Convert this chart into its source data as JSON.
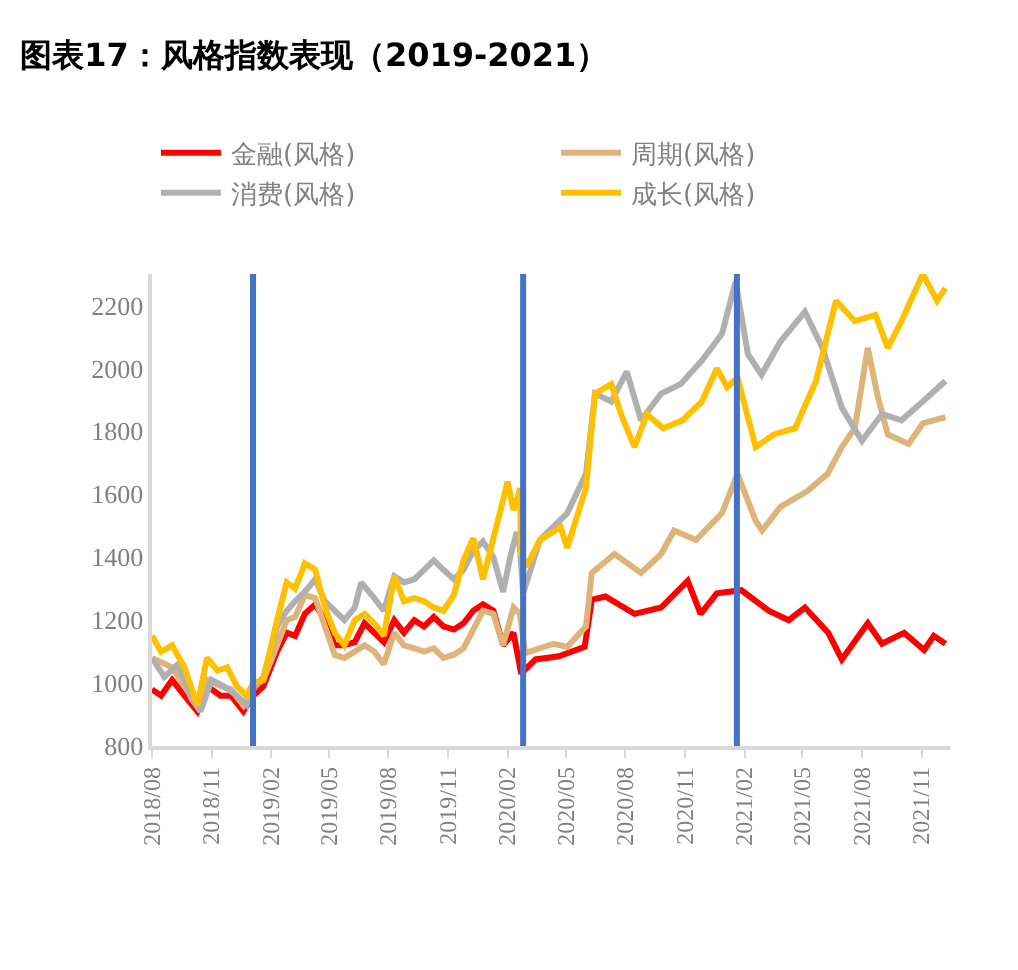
{
  "chart_data": {
    "type": "line",
    "title": "图表17：风格指数表现（2019-2021）",
    "xlim": [
      "2018-08-01",
      "2021-12-15"
    ],
    "xticks": [
      {
        "value": "2018-08-01",
        "label": "2018/08"
      },
      {
        "value": "2018-11-01",
        "label": "2018/11"
      },
      {
        "value": "2019-02-01",
        "label": "2019/02"
      },
      {
        "value": "2019-05-01",
        "label": "2019/05"
      },
      {
        "value": "2019-08-01",
        "label": "2019/08"
      },
      {
        "value": "2019-11-01",
        "label": "2019/11"
      },
      {
        "value": "2020-02-01",
        "label": "2020/02"
      },
      {
        "value": "2020-05-01",
        "label": "2020/05"
      },
      {
        "value": "2020-08-01",
        "label": "2020/08"
      },
      {
        "value": "2020-11-01",
        "label": "2020/11"
      },
      {
        "value": "2021-02-01",
        "label": "2021/02"
      },
      {
        "value": "2021-05-01",
        "label": "2021/05"
      },
      {
        "value": "2021-08-01",
        "label": "2021/08"
      },
      {
        "value": "2021-11-01",
        "label": "2021/11"
      }
    ],
    "ylim": [
      800,
      2300
    ],
    "yticks": [
      800,
      1000,
      1200,
      1400,
      1600,
      1800,
      2000,
      2200
    ],
    "legend": "top",
    "marker": "none",
    "line_style": "solid",
    "ref_lines": [
      {
        "axis": "x",
        "value": "2019-01-04",
        "color": "#4472c4"
      },
      {
        "axis": "x",
        "value": "2020-02-25",
        "color": "#4472c4"
      },
      {
        "axis": "x",
        "value": "2021-01-20",
        "color": "#4472c4"
      }
    ],
    "series": [
      {
        "name": "金融(风格)",
        "color": "#ff0000",
        "x": [
          "2018-08-01",
          "2018-08-15",
          "2018-09-01",
          "2018-09-20",
          "2018-10-10",
          "2018-10-25",
          "2018-11-15",
          "2018-12-01",
          "2018-12-20",
          "2019-01-04",
          "2019-01-20",
          "2019-02-10",
          "2019-02-25",
          "2019-03-10",
          "2019-03-25",
          "2019-04-10",
          "2019-04-25",
          "2019-05-10",
          "2019-05-25",
          "2019-06-10",
          "2019-06-25",
          "2019-07-10",
          "2019-07-25",
          "2019-08-10",
          "2019-08-25",
          "2019-09-10",
          "2019-09-25",
          "2019-10-10",
          "2019-10-25",
          "2019-11-10",
          "2019-11-25",
          "2019-12-10",
          "2019-12-25",
          "2020-01-10",
          "2020-01-25",
          "2020-02-10",
          "2020-02-22",
          "2020-03-15",
          "2020-04-20",
          "2020-05-30",
          "2020-06-10",
          "2020-07-01",
          "2020-08-15",
          "2020-09-25",
          "2020-11-05",
          "2020-11-25",
          "2020-12-20",
          "2021-01-27",
          "2021-03-10",
          "2021-04-10",
          "2021-05-05",
          "2021-06-10",
          "2021-07-01",
          "2021-08-10",
          "2021-09-01",
          "2021-10-05",
          "2021-11-05",
          "2021-11-20",
          "2021-12-08"
        ],
        "values": [
          980,
          960,
          1010,
          960,
          910,
          990,
          960,
          960,
          910,
          960,
          990,
          1100,
          1160,
          1150,
          1220,
          1250,
          1200,
          1120,
          1120,
          1130,
          1190,
          1160,
          1130,
          1200,
          1160,
          1200,
          1180,
          1210,
          1180,
          1170,
          1190,
          1230,
          1250,
          1230,
          1120,
          1160,
          1030,
          1075,
          1085,
          1115,
          1265,
          1275,
          1220,
          1240,
          1325,
          1220,
          1285,
          1295,
          1230,
          1200,
          1240,
          1160,
          1075,
          1190,
          1125,
          1160,
          1105,
          1150,
          1125
        ]
      },
      {
        "name": "周期(风格)",
        "color": "#dfb47a",
        "x": [
          "2018-08-01",
          "2018-09-01",
          "2018-09-20",
          "2018-10-10",
          "2018-10-25",
          "2018-11-15",
          "2018-12-01",
          "2018-12-20",
          "2019-01-04",
          "2019-01-20",
          "2019-02-10",
          "2019-02-25",
          "2019-03-10",
          "2019-03-25",
          "2019-04-10",
          "2019-04-25",
          "2019-05-10",
          "2019-05-25",
          "2019-06-10",
          "2019-06-25",
          "2019-07-10",
          "2019-07-25",
          "2019-08-10",
          "2019-08-25",
          "2019-09-10",
          "2019-09-25",
          "2019-10-10",
          "2019-10-25",
          "2019-11-10",
          "2019-11-25",
          "2019-12-10",
          "2019-12-25",
          "2020-01-10",
          "2020-01-25",
          "2020-02-10",
          "2020-02-20",
          "2020-02-28",
          "2020-04-12",
          "2020-05-03",
          "2020-06-01",
          "2020-06-10",
          "2020-07-15",
          "2020-08-25",
          "2020-09-25",
          "2020-10-15",
          "2020-11-18",
          "2020-12-28",
          "2021-01-21",
          "2021-02-18",
          "2021-02-28",
          "2021-03-28",
          "2021-05-09",
          "2021-06-09",
          "2021-07-01",
          "2021-07-21",
          "2021-08-10",
          "2021-08-25",
          "2021-09-10",
          "2021-10-12",
          "2021-11-03",
          "2021-12-08"
        ],
        "values": [
          1080,
          1050,
          990,
          930,
          1010,
          990,
          980,
          930,
          990,
          1010,
          1120,
          1200,
          1210,
          1280,
          1270,
          1180,
          1090,
          1080,
          1100,
          1120,
          1100,
          1060,
          1160,
          1120,
          1110,
          1100,
          1110,
          1080,
          1090,
          1110,
          1170,
          1230,
          1220,
          1120,
          1240,
          1220,
          1095,
          1125,
          1115,
          1180,
          1350,
          1410,
          1350,
          1410,
          1485,
          1455,
          1540,
          1665,
          1515,
          1485,
          1560,
          1610,
          1665,
          1750,
          1810,
          2065,
          1915,
          1790,
          1760,
          1825,
          1845
        ]
      },
      {
        "name": "消费(风格)",
        "color": "#b0b0b0",
        "x": [
          "2018-08-01",
          "2018-08-20",
          "2018-09-10",
          "2018-10-01",
          "2018-10-15",
          "2018-11-01",
          "2018-11-20",
          "2018-12-10",
          "2018-12-25",
          "2019-01-04",
          "2019-01-20",
          "2019-02-10",
          "2019-02-25",
          "2019-03-10",
          "2019-03-25",
          "2019-04-10",
          "2019-04-25",
          "2019-05-10",
          "2019-05-25",
          "2019-06-10",
          "2019-06-20",
          "2019-07-10",
          "2019-07-25",
          "2019-08-10",
          "2019-08-25",
          "2019-09-10",
          "2019-09-25",
          "2019-10-10",
          "2019-10-25",
          "2019-11-10",
          "2019-11-25",
          "2019-12-10",
          "2019-12-25",
          "2020-01-10",
          "2020-01-25",
          "2020-02-05",
          "2020-02-15",
          "2020-02-20",
          "2020-02-25",
          "2020-03-22",
          "2020-05-03",
          "2020-06-01",
          "2020-06-15",
          "2020-07-10",
          "2020-08-03",
          "2020-08-25",
          "2020-09-25",
          "2020-10-25",
          "2020-11-27",
          "2020-12-28",
          "2021-01-18",
          "2021-02-06",
          "2021-02-27",
          "2021-03-28",
          "2021-05-05",
          "2021-06-01",
          "2021-07-01",
          "2021-08-01",
          "2021-09-01",
          "2021-10-01",
          "2021-11-03",
          "2021-12-08"
        ],
        "values": [
          1080,
          1020,
          1060,
          950,
          910,
          1010,
          990,
          960,
          930,
          980,
          1020,
          1180,
          1230,
          1260,
          1290,
          1330,
          1260,
          1230,
          1200,
          1240,
          1320,
          1270,
          1230,
          1340,
          1320,
          1330,
          1360,
          1390,
          1360,
          1330,
          1360,
          1420,
          1450,
          1400,
          1290,
          1400,
          1480,
          1430,
          1285,
          1455,
          1540,
          1665,
          1920,
          1895,
          1990,
          1835,
          1920,
          1950,
          2025,
          2110,
          2275,
          2045,
          1980,
          2085,
          2180,
          2065,
          1875,
          1770,
          1855,
          1835,
          1895,
          1960
        ]
      },
      {
        "name": "成长(风格)",
        "color": "#ffc000",
        "x": [
          "2018-08-01",
          "2018-08-15",
          "2018-09-01",
          "2018-09-20",
          "2018-10-10",
          "2018-10-25",
          "2018-11-10",
          "2018-11-25",
          "2018-12-10",
          "2018-12-25",
          "2019-01-04",
          "2019-01-20",
          "2019-02-10",
          "2019-02-25",
          "2019-03-10",
          "2019-03-25",
          "2019-04-10",
          "2019-04-25",
          "2019-05-10",
          "2019-05-25",
          "2019-06-10",
          "2019-06-25",
          "2019-07-10",
          "2019-07-25",
          "2019-08-10",
          "2019-08-25",
          "2019-09-10",
          "2019-09-25",
          "2019-10-10",
          "2019-10-25",
          "2019-11-10",
          "2019-11-25",
          "2019-12-10",
          "2019-12-25",
          "2020-01-15",
          "2020-02-01",
          "2020-02-10",
          "2020-02-18",
          "2020-02-20",
          "2020-02-22",
          "2020-03-01",
          "2020-03-22",
          "2020-04-23",
          "2020-05-03",
          "2020-06-01",
          "2020-06-15",
          "2020-07-10",
          "2020-07-25",
          "2020-08-15",
          "2020-09-03",
          "2020-09-28",
          "2020-10-28",
          "2020-11-27",
          "2020-12-20",
          "2021-01-05",
          "2021-01-21",
          "2021-02-18",
          "2021-03-18",
          "2021-04-20",
          "2021-05-22",
          "2021-06-22",
          "2021-07-21",
          "2021-08-22",
          "2021-09-10",
          "2021-10-01",
          "2021-11-03",
          "2021-11-25",
          "2021-12-08"
        ],
        "values": [
          1150,
          1100,
          1120,
          1050,
          930,
          1080,
          1040,
          1050,
          990,
          960,
          1000,
          1010,
          1200,
          1320,
          1300,
          1380,
          1360,
          1240,
          1160,
          1120,
          1200,
          1220,
          1190,
          1150,
          1340,
          1260,
          1270,
          1260,
          1240,
          1230,
          1280,
          1390,
          1460,
          1330,
          1500,
          1640,
          1550,
          1600,
          1620,
          1410,
          1370,
          1455,
          1495,
          1430,
          1620,
          1920,
          1950,
          1855,
          1750,
          1855,
          1810,
          1835,
          1895,
          2000,
          1940,
          1970,
          1750,
          1790,
          1810,
          1960,
          2215,
          2150,
          2170,
          2065,
          2150,
          2300,
          2215,
          2255
        ]
      }
    ]
  }
}
